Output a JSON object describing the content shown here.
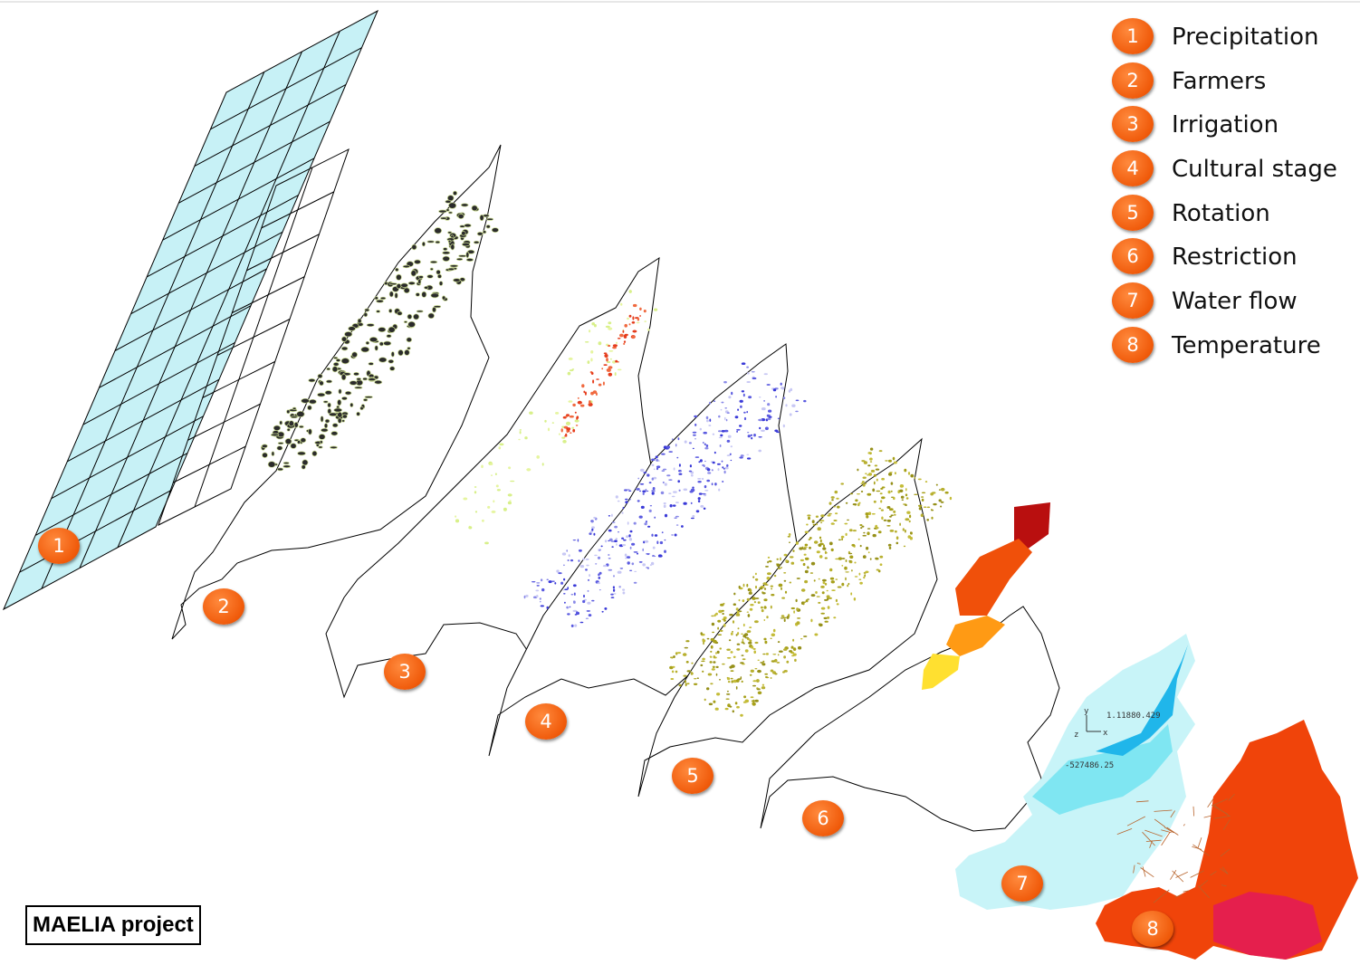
{
  "legend": [
    {
      "number": "1",
      "label": "Precipitation"
    },
    {
      "number": "2",
      "label": "Farmers"
    },
    {
      "number": "3",
      "label": "Irrigation"
    },
    {
      "number": "4",
      "label": "Cultural stage"
    },
    {
      "number": "5",
      "label": "Rotation"
    },
    {
      "number": "6",
      "label": "Restriction"
    },
    {
      "number": "7",
      "label": "Water flow"
    },
    {
      "number": "8",
      "label": "Temperature"
    }
  ],
  "map_badges": [
    "1",
    "2",
    "3",
    "4",
    "5",
    "6",
    "7",
    "8"
  ],
  "axis_readout": {
    "x_value": "1.11880.429",
    "y_value": "-527486.25",
    "x_axis": "x",
    "y_axis": "y",
    "z_axis": "z"
  },
  "project_label": "MAELIA project",
  "colors": {
    "badge": "#f05a0a",
    "grid_fill": "#c7f1f6",
    "farmers": "#1a1a1a",
    "irrigation": "#e53c1c",
    "cultural_stage": "#3a3ad8",
    "rotation": "#a7a01a",
    "restriction": [
      "#b90f0f",
      "#f0500a",
      "#ff9a14",
      "#ffe030"
    ],
    "water_flow": [
      "#c8f4f8",
      "#7fe6f2",
      "#20b6ea"
    ],
    "temperature": [
      "#f0440a",
      "#e02a10",
      "#e0106a"
    ]
  }
}
